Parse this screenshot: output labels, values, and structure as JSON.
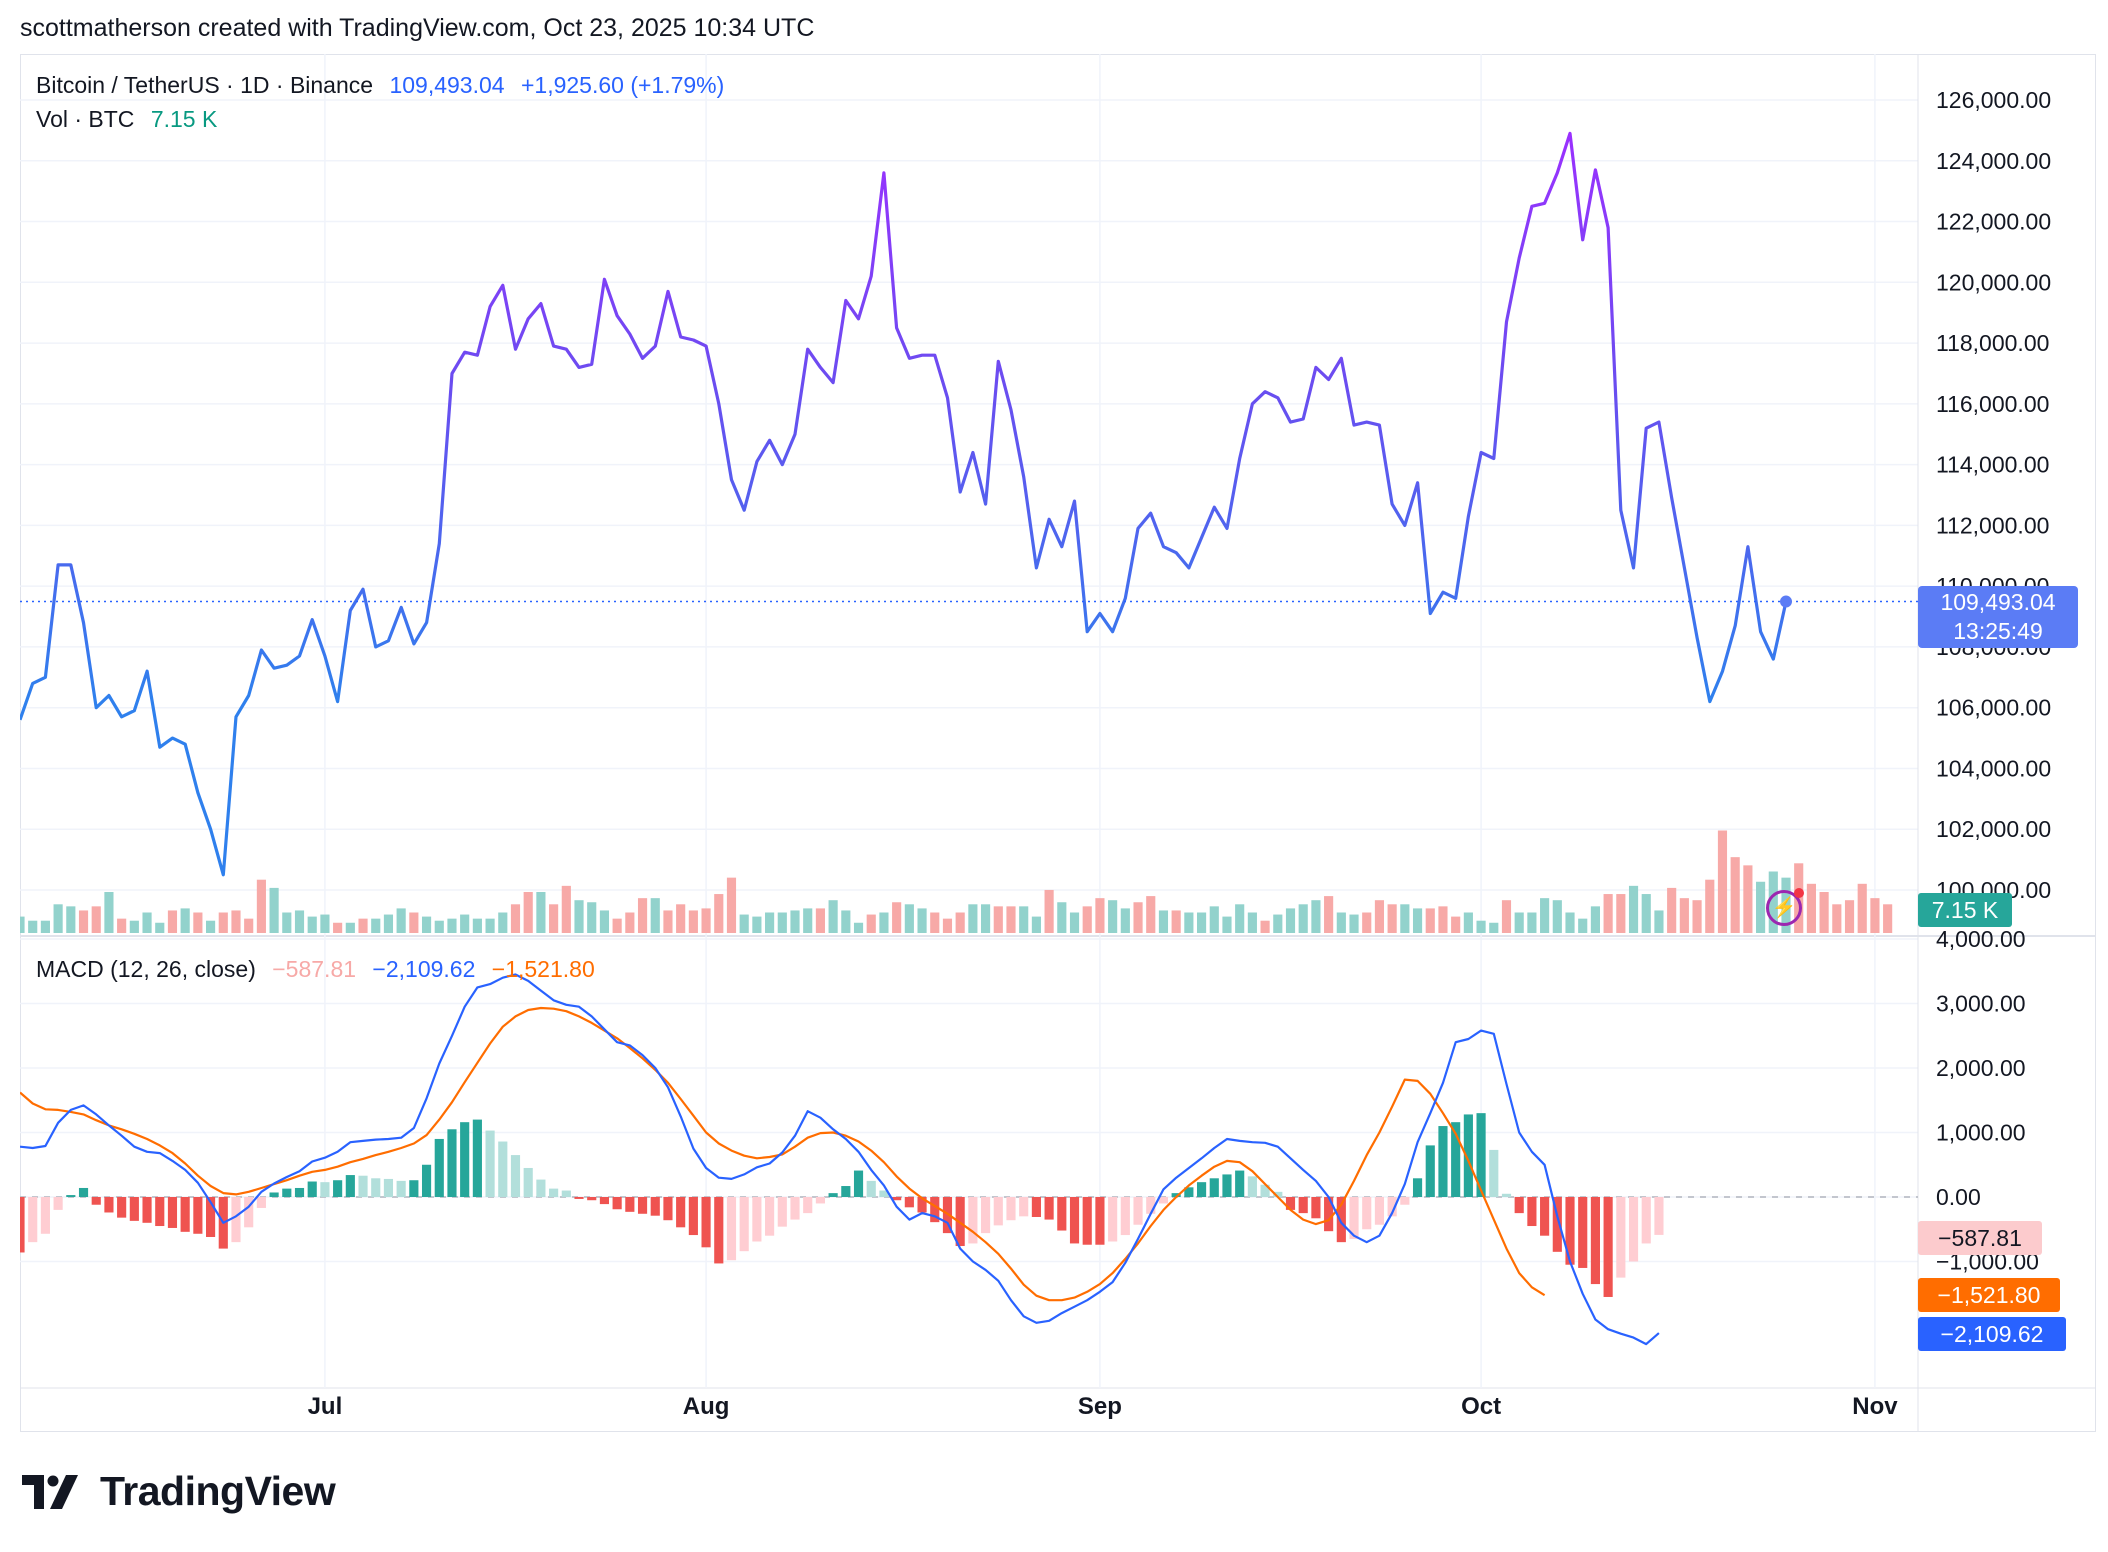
{
  "header": {
    "text": "scottmatherson created with TradingView.com, Oct 23, 2025 10:34 UTC"
  },
  "legend": {
    "symbol": "Bitcoin / TetherUS · 1D · Binance",
    "last_price": "109,493.04",
    "change": "+1,925.60 (+1.79%)",
    "volume_label": "Vol · BTC",
    "volume_value": "7.15 K",
    "macd_label": "MACD (12, 26, close)",
    "macd_hist": "−587.81",
    "macd_line": "−2,109.62",
    "macd_signal": "−1,521.80"
  },
  "badges": {
    "price": "109,493.04",
    "countdown": "13:25:49",
    "volume": "7.15 K",
    "macd_hist": "−587.81",
    "macd_signal": "−1,521.80",
    "macd_line": "−2,109.62"
  },
  "logo": {
    "text": "TradingView"
  },
  "colors": {
    "up": "#26a69a",
    "down": "#ef5350",
    "vol_up": "#92d2cc",
    "vol_down": "#f7a9a7",
    "macd_line": "#2962ff",
    "signal_line": "#ff6d00",
    "price_line_low": "#2f80ed",
    "price_line_high": "#9b30ff",
    "badge_blue": "#2962ff"
  },
  "chart_data": [
    {
      "type": "line",
      "title": "Bitcoin / TetherUS · 1D · Binance",
      "x_tick_labels": [
        "Jul",
        "Aug",
        "Sep",
        "Oct",
        "Nov"
      ],
      "y_tick_labels": [
        "126,000.00",
        "124,000.00",
        "122,000.00",
        "120,000.00",
        "118,000.00",
        "116,000.00",
        "114,000.00",
        "112,000.00",
        "110,000.00",
        "108,000.00",
        "106,000.00",
        "104,000.00",
        "102,000.00",
        "100,000.00"
      ],
      "ylim": [
        99000,
        126500
      ],
      "x_start": "2025-06-07",
      "x_end": "2025-10-23",
      "series": [
        {
          "name": "Bitcoin / TetherUS",
          "values": [
            105600,
            106800,
            107000,
            110700,
            110700,
            108800,
            106000,
            106400,
            105700,
            105900,
            107200,
            104700,
            105000,
            104800,
            103200,
            102000,
            100500,
            105700,
            106400,
            107900,
            107300,
            107400,
            107700,
            108900,
            107700,
            106200,
            109200,
            109900,
            108000,
            108200,
            109300,
            108100,
            108800,
            111400,
            117000,
            117700,
            117600,
            119200,
            119900,
            117800,
            118800,
            119300,
            117900,
            117800,
            117200,
            117300,
            120100,
            118900,
            118300,
            117500,
            117900,
            119700,
            118200,
            118100,
            117900,
            116000,
            113500,
            112500,
            114100,
            114800,
            114000,
            115000,
            117800,
            117200,
            116700,
            119400,
            118800,
            120200,
            123600,
            118500,
            117500,
            117600,
            117600,
            116200,
            113100,
            114400,
            112700,
            117400,
            115800,
            113600,
            110600,
            112200,
            111300,
            112800,
            108500,
            109100,
            108500,
            109600,
            111900,
            112400,
            111300,
            111100,
            110600,
            111600,
            112600,
            111900,
            114200,
            116000,
            116400,
            116200,
            115400,
            115500,
            117200,
            116800,
            117500,
            115300,
            115400,
            115300,
            112700,
            112000,
            113400,
            109100,
            109800,
            109600,
            112300,
            114400,
            114200,
            118700,
            120800,
            122500,
            122600,
            123600,
            124900,
            121400,
            123700,
            121800,
            112500,
            110600,
            115200,
            115400,
            112900,
            110600,
            108300,
            106200,
            107200,
            108700,
            111300,
            108500,
            107600,
            109493
          ]
        }
      ]
    },
    {
      "type": "bar",
      "title": "Vol · BTC",
      "values": [
        8,
        6,
        6,
        14,
        13,
        11,
        13,
        20,
        7,
        6,
        10,
        5,
        11,
        12,
        10,
        6,
        10,
        11,
        7,
        26,
        22,
        10,
        11,
        8,
        9,
        5,
        5,
        7,
        7,
        9,
        12,
        10,
        8,
        6,
        7,
        9,
        7,
        7,
        10,
        14,
        20,
        20,
        14,
        23,
        16,
        15,
        11,
        7,
        10,
        17,
        17,
        11,
        14,
        11,
        12,
        19,
        27,
        9,
        8,
        10,
        10,
        11,
        12,
        12,
        16,
        11,
        5,
        9,
        10,
        15,
        14,
        12,
        10,
        7,
        10,
        14,
        14,
        13,
        13,
        13,
        8,
        21,
        15,
        10,
        13,
        17,
        16,
        12,
        15,
        18,
        11,
        11,
        10,
        10,
        13,
        8,
        14,
        10,
        6,
        9,
        12,
        14,
        16,
        18,
        10,
        9,
        10,
        16,
        14,
        14,
        12,
        12,
        13,
        8,
        10,
        6,
        5,
        16,
        10,
        10,
        17,
        16,
        10,
        7,
        13,
        19,
        19,
        23,
        19,
        11,
        22,
        17,
        16,
        26,
        50,
        37,
        33,
        25,
        30,
        27,
        34,
        24,
        20,
        14,
        16,
        24,
        17,
        14
      ],
      "bar_direction": [
        "u",
        "u",
        "u",
        "u",
        "u",
        "d",
        "d",
        "u",
        "d",
        "u",
        "u",
        "u",
        "d",
        "u",
        "d",
        "u",
        "d",
        "d",
        "d",
        "d",
        "u",
        "u",
        "u",
        "u",
        "u",
        "d",
        "u",
        "d",
        "u",
        "u",
        "u",
        "d",
        "u",
        "u",
        "u",
        "u",
        "u",
        "u",
        "u",
        "d",
        "d",
        "u",
        "d",
        "d",
        "u",
        "u",
        "u",
        "d",
        "d",
        "d",
        "u",
        "d",
        "d",
        "d",
        "d",
        "d",
        "d",
        "u",
        "u",
        "u",
        "u",
        "u",
        "u",
        "d",
        "u",
        "u",
        "u",
        "d",
        "u",
        "d",
        "u",
        "u",
        "d",
        "d",
        "d",
        "u",
        "u",
        "d",
        "d",
        "u",
        "u",
        "d",
        "u",
        "u",
        "d",
        "d",
        "u",
        "u",
        "d",
        "d",
        "u",
        "d",
        "u",
        "u",
        "u",
        "u",
        "u",
        "u",
        "d",
        "u",
        "u",
        "u",
        "u",
        "d",
        "u",
        "u",
        "d",
        "d",
        "d",
        "u",
        "u",
        "d",
        "d",
        "d",
        "u",
        "u",
        "u",
        "d",
        "u",
        "u",
        "u",
        "u",
        "u",
        "u",
        "u",
        "d",
        "d",
        "u",
        "u",
        "u",
        "d",
        "d",
        "d",
        "d",
        "d",
        "d",
        "d",
        "u",
        "u",
        "u",
        "d",
        "d",
        "d",
        "d"
      ],
      "last_value": "7.15 K"
    },
    {
      "type": "line",
      "title": "MACD (12, 26, close)",
      "y_tick_labels": [
        "4,000.00",
        "3,000.00",
        "2,000.00",
        "1,000.00",
        "0.00",
        "−1,000.00"
      ],
      "ylim": [
        -2600,
        4200
      ],
      "series": [
        {
          "name": "MACD line",
          "values": [
            780,
            760,
            790,
            1150,
            1350,
            1420,
            1280,
            1110,
            950,
            780,
            700,
            680,
            560,
            420,
            220,
            -80,
            -400,
            -300,
            -150,
            80,
            210,
            310,
            400,
            550,
            610,
            700,
            850,
            870,
            890,
            900,
            920,
            1070,
            1530,
            2070,
            2500,
            2950,
            3250,
            3300,
            3400,
            3450,
            3350,
            3200,
            3050,
            2980,
            2950,
            2800,
            2600,
            2400,
            2350,
            2200,
            2000,
            1700,
            1250,
            750,
            450,
            300,
            280,
            350,
            460,
            520,
            690,
            950,
            1330,
            1230,
            1050,
            900,
            700,
            420,
            180,
            -150,
            -350,
            -250,
            -300,
            -400,
            -800,
            -1000,
            -1130,
            -1300,
            -1600,
            -1850,
            -1950,
            -1920,
            -1800,
            -1700,
            -1600,
            -1470,
            -1320,
            -1020,
            -650,
            -260,
            120,
            300,
            450,
            600,
            760,
            900,
            870,
            850,
            840,
            780,
            600,
            420,
            250,
            0,
            -400,
            -600,
            -700,
            -600,
            -250,
            200,
            850,
            1300,
            1770,
            2400,
            2450,
            2580,
            2530,
            1750,
            1000,
            700,
            500,
            -300,
            -1000,
            -1500,
            -1900,
            -2050,
            -2120,
            -2180,
            -2280,
            -2109.62
          ]
        },
        {
          "name": "Signal line",
          "values": [
            1620,
            1450,
            1360,
            1350,
            1320,
            1280,
            1190,
            1110,
            1050,
            980,
            900,
            800,
            680,
            520,
            330,
            170,
            60,
            40,
            80,
            140,
            200,
            260,
            330,
            390,
            420,
            470,
            540,
            590,
            650,
            700,
            760,
            830,
            960,
            1200,
            1470,
            1780,
            2080,
            2380,
            2640,
            2800,
            2900,
            2930,
            2920,
            2880,
            2800,
            2700,
            2580,
            2460,
            2310,
            2150,
            1970,
            1770,
            1520,
            1260,
            1000,
            830,
            720,
            640,
            600,
            620,
            660,
            780,
            920,
            990,
            1000,
            950,
            860,
            720,
            540,
            320,
            130,
            -20,
            -140,
            -260,
            -400,
            -540,
            -700,
            -880,
            -1110,
            -1360,
            -1530,
            -1600,
            -1600,
            -1560,
            -1470,
            -1350,
            -1180,
            -960,
            -720,
            -450,
            -200,
            0,
            180,
            330,
            470,
            560,
            540,
            400,
            200,
            0,
            -200,
            -350,
            -420,
            -360,
            -120,
            250,
            650,
            1000,
            1400,
            1820,
            1800,
            1600,
            1300,
            980,
            560,
            100,
            -350,
            -800,
            -1180,
            -1400,
            -1521.8
          ]
        },
        {
          "name": "Histogram",
          "values": [
            -860,
            -700,
            -570,
            -200,
            30,
            140,
            -120,
            -240,
            -320,
            -370,
            -400,
            -450,
            -480,
            -540,
            -570,
            -620,
            -800,
            -700,
            -470,
            -170,
            70,
            130,
            140,
            240,
            230,
            260,
            340,
            330,
            290,
            280,
            250,
            260,
            500,
            900,
            1050,
            1160,
            1200,
            1030,
            860,
            650,
            450,
            270,
            130,
            100,
            -30,
            -50,
            -110,
            -190,
            -230,
            -260,
            -290,
            -360,
            -470,
            -590,
            -780,
            -1030,
            -980,
            -840,
            -690,
            -600,
            -460,
            -350,
            -250,
            -100,
            60,
            170,
            410,
            250,
            100,
            -50,
            -160,
            -240,
            -390,
            -560,
            -760,
            -720,
            -560,
            -440,
            -360,
            -300,
            -310,
            -350,
            -520,
            -720,
            -740,
            -740,
            -690,
            -590,
            -430,
            -260,
            -100,
            60,
            150,
            230,
            290,
            350,
            410,
            320,
            190,
            80,
            -200,
            -250,
            -330,
            -530,
            -700,
            -650,
            -500,
            -430,
            -300,
            -120,
            290,
            800,
            1100,
            1160,
            1280,
            1300,
            730,
            50,
            -250,
            -450,
            -600,
            -850,
            -1050,
            -1100,
            -1350,
            -1550,
            -1250,
            -1000,
            -720,
            -587.81
          ]
        }
      ]
    }
  ]
}
